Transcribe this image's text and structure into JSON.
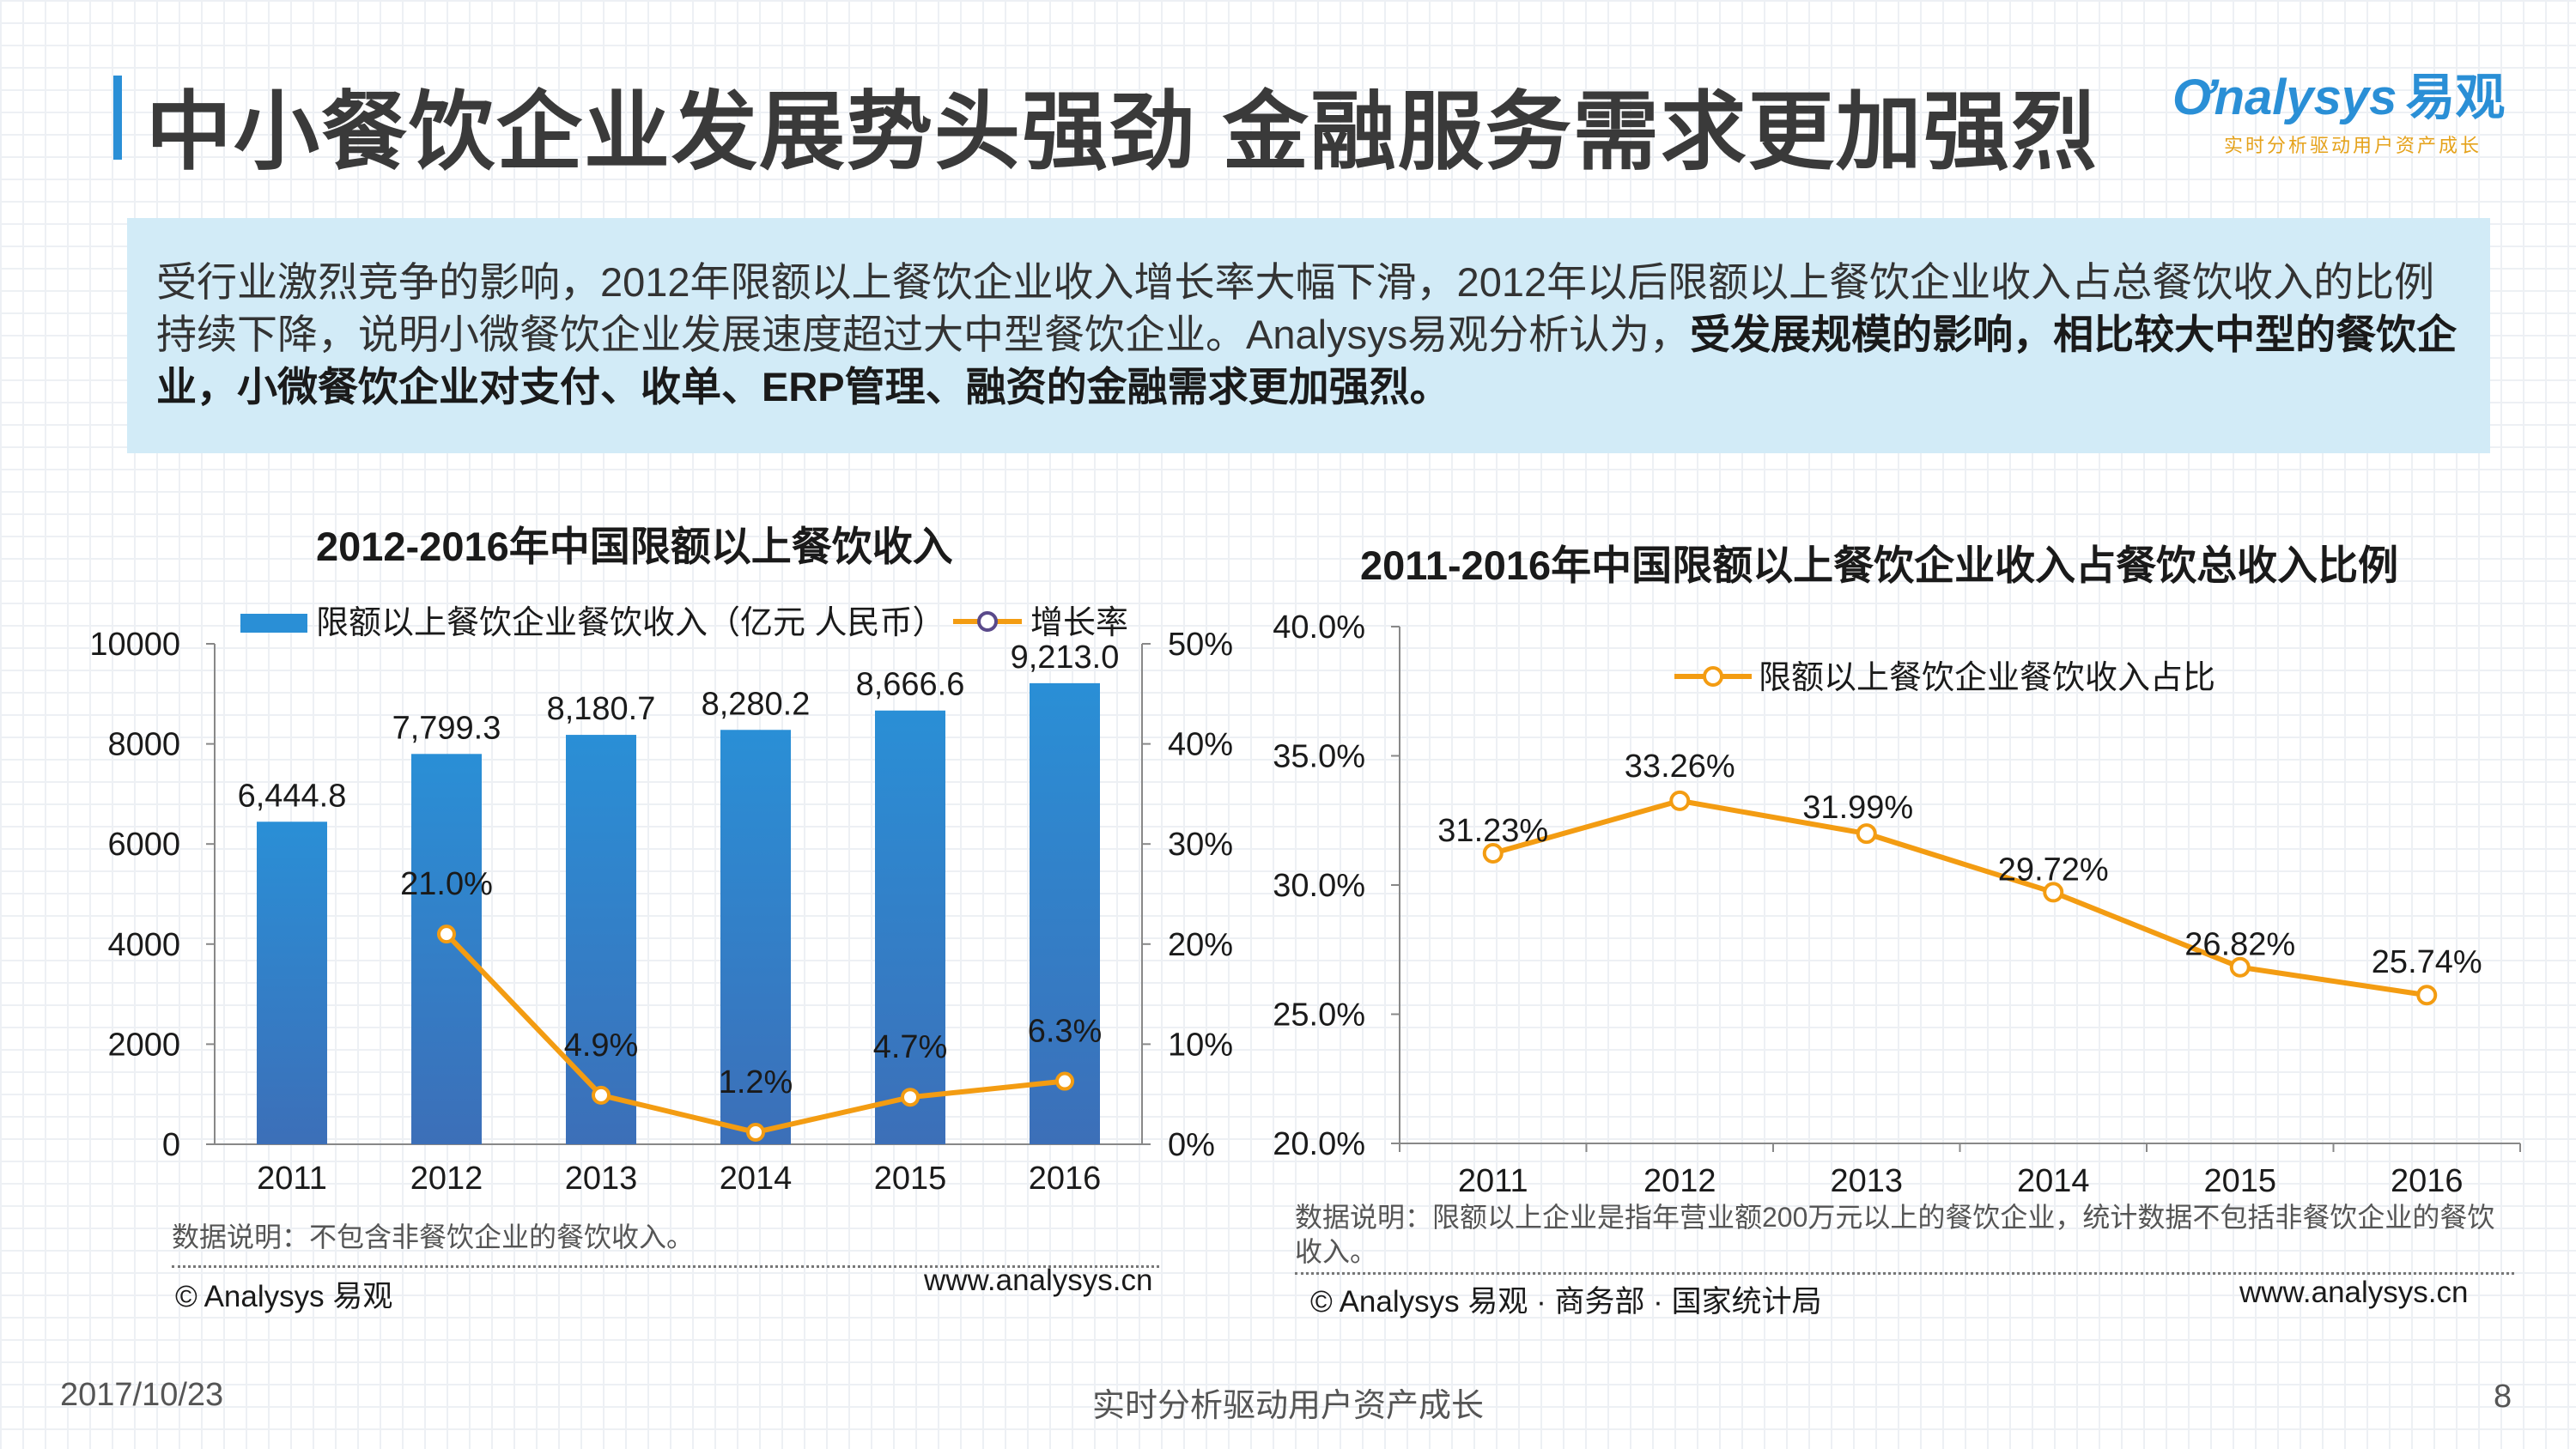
{
  "title": "中小餐饮企业发展势头强劲  金融服务需求更加强烈",
  "logo": {
    "brand": "nalysys",
    "brand_cn": "易观",
    "slogan": "实时分析驱动用户资产成长"
  },
  "summary": {
    "normal": "受行业激烈竞争的影响，2012年限额以上餐饮企业收入增长率大幅下滑，2012年以后限额以上餐饮企业收入占总餐饮收入的比例持续下降，说明小微餐饮企业发展速度超过大中型餐饮企业。Analysys易观分析认为，",
    "bold": "受发展规模的影响，相比较大中型的餐饮企业，小微餐饮企业对支付、收单、ERP管理、融资的金融需求更加强烈。"
  },
  "colors": {
    "bar": "#2a8fd6",
    "line": "#f39c12",
    "accent": "#2a8fd6",
    "summary_bg": "#d2ebf7"
  },
  "chart_data": [
    {
      "type": "bar",
      "title": "2012-2016年中国限额以上餐饮收入",
      "categories": [
        "2011",
        "2012",
        "2013",
        "2014",
        "2015",
        "2016"
      ],
      "series": [
        {
          "name": "限额以上餐饮企业餐饮收入（亿元 人民币）",
          "axis": "left",
          "kind": "bar",
          "values": [
            6444.8,
            7799.3,
            8180.7,
            8280.2,
            8666.6,
            9213.0
          ],
          "labels": [
            "6,444.8",
            "7,799.3",
            "8,180.7",
            "8,280.2",
            "8,666.6",
            "9,213.0"
          ]
        },
        {
          "name": "增长率",
          "axis": "right",
          "kind": "line",
          "values": [
            null,
            21.0,
            4.9,
            1.2,
            4.7,
            6.3
          ],
          "labels": [
            "",
            "21.0%",
            "4.9%",
            "1.2%",
            "4.7%",
            "6.3%"
          ]
        }
      ],
      "ylim": [
        0,
        10000
      ],
      "yticks": [
        "0",
        "2000",
        "4000",
        "6000",
        "8000",
        "10000"
      ],
      "y2lim": [
        0,
        50
      ],
      "y2ticks": [
        "0%",
        "10%",
        "20%",
        "30%",
        "40%",
        "50%"
      ],
      "grid": false,
      "legend": "top",
      "note": "数据说明：不包含非餐饮企业的餐饮收入。",
      "credit_left": "© Analysys 易观",
      "credit_right": "www.analysys.cn"
    },
    {
      "type": "line",
      "title": "2011-2016年中国限额以上餐饮企业收入占餐饮总收入比例",
      "categories": [
        "2011",
        "2012",
        "2013",
        "2014",
        "2015",
        "2016"
      ],
      "series": [
        {
          "name": "限额以上餐饮企业餐饮收入占比",
          "values": [
            31.23,
            33.26,
            31.99,
            29.72,
            26.82,
            25.74
          ],
          "labels": [
            "31.23%",
            "33.26%",
            "31.99%",
            "29.72%",
            "26.82%",
            "25.74%"
          ]
        }
      ],
      "ylim": [
        20,
        40
      ],
      "yticks": [
        "20.0%",
        "25.0%",
        "30.0%",
        "35.0%",
        "40.0%"
      ],
      "grid": false,
      "legend": "top-right",
      "note": "数据说明：限额以上企业是指年营业额200万元以上的餐饮企业，统计数据不包括非餐饮企业的餐饮收入。",
      "credit_left": "© Analysys 易观 · 商务部 · 国家统计局",
      "credit_right": "www.analysys.cn"
    }
  ],
  "footer": {
    "date": "2017/10/23",
    "slogan": "实时分析驱动用户资产成长",
    "page": "8"
  }
}
